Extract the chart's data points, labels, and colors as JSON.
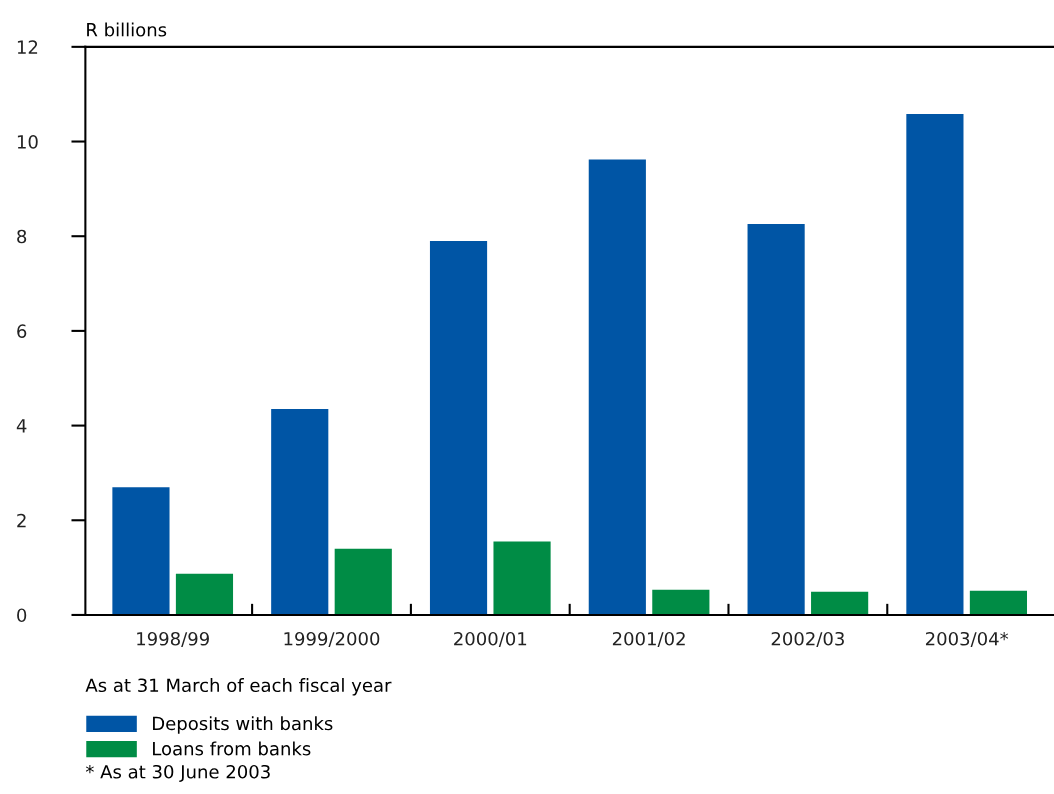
{
  "chart_data": {
    "type": "bar",
    "ylabel": "R billions",
    "categories": [
      "1998/99",
      "1999/2000",
      "2000/01",
      "2001/02",
      "2002/03",
      "2003/04*"
    ],
    "series": [
      {
        "name": "Deposits with banks",
        "color": "#0055a5",
        "values": [
          2.7,
          4.35,
          7.9,
          9.62,
          8.26,
          10.58
        ]
      },
      {
        "name": "Loans from banks",
        "color": "#008c45",
        "values": [
          0.87,
          1.4,
          1.55,
          0.53,
          0.49,
          0.51
        ]
      }
    ],
    "ylim": [
      0,
      12
    ],
    "yticks": [
      0,
      2,
      4,
      6,
      8,
      10,
      12
    ],
    "grid": false,
    "legend": "bottom",
    "annotations": [
      "As at 31 March of each fiscal year",
      "* As at 30 June 2003"
    ]
  }
}
